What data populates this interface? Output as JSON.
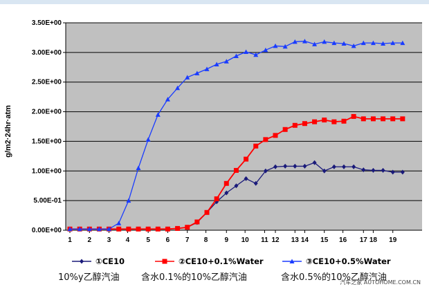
{
  "chart_data": {
    "type": "line",
    "title": "",
    "xlabel": "",
    "ylabel": "g/m2·24hr·atm",
    "ylim": [
      0,
      3.5
    ],
    "y_ticks": [
      "0.00E+00",
      "5.00E-01",
      "1.00E+00",
      "1.50E+00",
      "2.00E+00",
      "2.50E+00",
      "3.00E+00",
      "3.50E+00"
    ],
    "y_tick_values": [
      0,
      0.5,
      1.0,
      1.5,
      2.0,
      2.5,
      3.0,
      3.5
    ],
    "x_ticks": [
      "1",
      "2",
      "3",
      "4",
      "5",
      "6",
      "7",
      "8",
      "9",
      "10",
      "11",
      "12",
      "13",
      "14",
      "15",
      "16",
      "17",
      "18",
      "19"
    ],
    "x_tick_positions": [
      1,
      3,
      5,
      6.9,
      9,
      11,
      13,
      14.9,
      17,
      18.9,
      20.9,
      22,
      24,
      25,
      27,
      28.9,
      31,
      32,
      34
    ],
    "x_range": [
      1,
      36
    ],
    "grid": true,
    "legend_position": "bottom",
    "series": [
      {
        "name": "①CE10",
        "color": "#1a1a7a",
        "marker": "diamond",
        "x": [
          1,
          2,
          3,
          4,
          5,
          6,
          7,
          8,
          9,
          10,
          11,
          12,
          13,
          14,
          15,
          16,
          17,
          18,
          19,
          20,
          21,
          22,
          23,
          24,
          25,
          26,
          27,
          28,
          29,
          30,
          31,
          32,
          33,
          34,
          35
        ],
        "values": [
          0.02,
          0.02,
          0.02,
          0.02,
          0.02,
          0.02,
          0.02,
          0.02,
          0.02,
          0.02,
          0.02,
          0.03,
          0.05,
          0.13,
          0.3,
          0.48,
          0.63,
          0.75,
          0.87,
          0.79,
          1.0,
          1.07,
          1.08,
          1.08,
          1.08,
          1.14,
          1.0,
          1.07,
          1.07,
          1.07,
          1.02,
          1.01,
          1.01,
          0.98,
          0.98
        ]
      },
      {
        "name": "②CE10+0.1%Water",
        "color": "#ff0000",
        "marker": "square",
        "x": [
          1,
          2,
          3,
          4,
          5,
          6,
          7,
          8,
          9,
          10,
          11,
          12,
          13,
          14,
          15,
          16,
          17,
          18,
          19,
          20,
          21,
          22,
          23,
          24,
          25,
          26,
          27,
          28,
          29,
          30,
          31,
          32,
          33,
          34,
          35
        ],
        "values": [
          0.02,
          0.02,
          0.02,
          0.02,
          0.02,
          0.02,
          0.02,
          0.02,
          0.02,
          0.02,
          0.02,
          0.03,
          0.05,
          0.14,
          0.3,
          0.53,
          0.79,
          1.01,
          1.2,
          1.42,
          1.53,
          1.6,
          1.7,
          1.77,
          1.8,
          1.83,
          1.86,
          1.83,
          1.84,
          1.92,
          1.88,
          1.88,
          1.88,
          1.88,
          1.88
        ]
      },
      {
        "name": "③CE10+0.5%Water",
        "color": "#1a3cff",
        "marker": "triangle",
        "x": [
          1,
          2,
          3,
          4,
          5,
          6,
          7,
          8,
          9,
          10,
          11,
          12,
          13,
          14,
          15,
          16,
          17,
          18,
          19,
          20,
          21,
          22,
          23,
          24,
          25,
          26,
          27,
          28,
          29,
          30,
          31,
          32,
          33,
          34,
          35
        ],
        "values": [
          0.02,
          0.02,
          0.02,
          0.02,
          0.02,
          0.12,
          0.5,
          1.05,
          1.53,
          1.95,
          2.21,
          2.4,
          2.58,
          2.65,
          2.72,
          2.8,
          2.85,
          2.94,
          3.01,
          2.96,
          3.04,
          3.11,
          3.1,
          3.18,
          3.19,
          3.14,
          3.18,
          3.16,
          3.15,
          3.11,
          3.16,
          3.16,
          3.15,
          3.16,
          3.16
        ]
      }
    ]
  },
  "caption": {
    "item1": "10%y乙醇汽油",
    "item2": "含水0.1%的10%乙醇汽油",
    "item3": "含水0.5%的10%乙醇汽油"
  },
  "watermark": "汽车之家 AUTOHOME.COM.CN",
  "colors": {
    "plot_background": "#c0c0c0",
    "grid": "#000000"
  }
}
